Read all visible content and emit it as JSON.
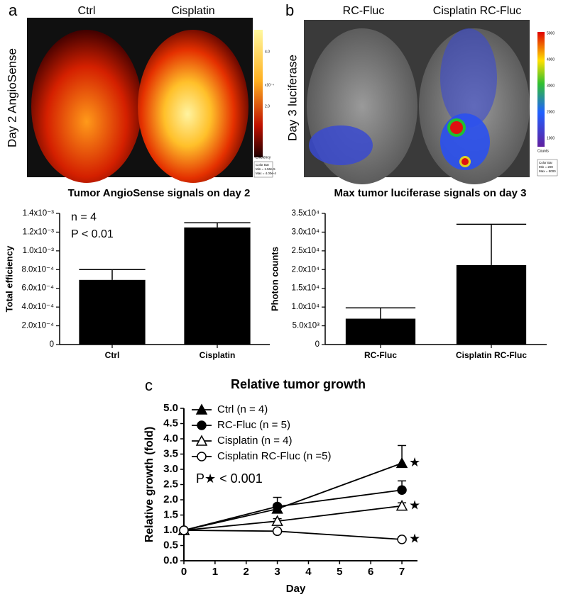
{
  "images": [
    {
      "panel_label": "a",
      "row_label": "Day 2 AngioSense",
      "columns": [
        "Ctrl",
        "Cisplatin"
      ],
      "colorbar": {
        "ticks": [
          "4.0",
          "2.0"
        ],
        "scale": "x10⁻⁴",
        "unit": "Efficiency",
        "box": [
          "Color Bar",
          "Min = 1.50e-5",
          "Max = 4.00e-4"
        ]
      }
    },
    {
      "panel_label": "b",
      "row_label": "Day 3 luciferase",
      "columns": [
        "RC-Fluc",
        "Cisplatin RC-Fluc"
      ],
      "colorbar": {
        "ticks": [
          "5000",
          "4000",
          "3000",
          "2000",
          "1000"
        ],
        "unit": "Counts",
        "box": [
          "Color Bar",
          "Min = 200",
          "Max = 5000"
        ]
      }
    }
  ],
  "chart_data": [
    {
      "type": "bar",
      "title": "Tumor AngioSense signals on day 2",
      "ylabel": "Total efficiency",
      "categories": [
        "Ctrl",
        "Cisplatin"
      ],
      "values": [
        0.00069,
        0.00125
      ],
      "errors": [
        0.00011,
        5e-05
      ],
      "color": "#000000",
      "ylim": [
        0,
        0.0014
      ],
      "yticks": [
        0,
        {
          "value": 0.0002,
          "label": "2.0x10⁻⁴"
        },
        {
          "value": 0.0004,
          "label": "4.0x10⁻⁴"
        },
        {
          "value": 0.0006,
          "label": "6.0x10⁻⁴"
        },
        {
          "value": 0.0008,
          "label": "8.0x10⁻⁴"
        },
        {
          "value": 0.001,
          "label": "1.0x10⁻³"
        },
        {
          "value": 0.0012,
          "label": "1.2x10⁻³"
        },
        {
          "value": 0.0014,
          "label": "1.4x10⁻³"
        }
      ],
      "annotations": [
        "n = 4",
        "P < 0.01"
      ]
    },
    {
      "type": "bar",
      "title": "Max tumor luciferase signals on day 3",
      "ylabel": "Photon counts",
      "categories": [
        "RC-Fluc",
        "Cisplatin RC-Fluc"
      ],
      "values": [
        6900,
        21200
      ],
      "errors": [
        2900,
        10900
      ],
      "color": "#000000",
      "ylim": [
        0,
        35000
      ],
      "yticks": [
        0,
        {
          "value": 5000,
          "label": "5.0x10³"
        },
        {
          "value": 10000,
          "label": "1.0x10⁴"
        },
        {
          "value": 15000,
          "label": "1.5x10⁴"
        },
        {
          "value": 20000,
          "label": "2.0x10⁴"
        },
        {
          "value": 25000,
          "label": "2.5x10⁴"
        },
        {
          "value": 30000,
          "label": "3.0x10⁴"
        },
        {
          "value": 35000,
          "label": "3.5x10⁴"
        }
      ]
    },
    {
      "type": "line",
      "panel_label": "c",
      "title": "Relative tumor growth",
      "xlabel": "Day",
      "ylabel": "Relative growth (fold)",
      "x": [
        0,
        3,
        7
      ],
      "xlim": [
        0,
        7.5
      ],
      "xticks": [
        0,
        1,
        2,
        3,
        4,
        5,
        6,
        7
      ],
      "ylim": [
        0,
        5
      ],
      "yticks": [
        {
          "value": 0,
          "label": "0.0"
        },
        0.5,
        {
          "value": 1,
          "label": "1.0"
        },
        1.5,
        {
          "value": 2,
          "label": "2.0"
        },
        2.5,
        {
          "value": 3,
          "label": "3.0"
        },
        3.5,
        {
          "value": 4,
          "label": "4.0"
        },
        4.5,
        {
          "value": 5,
          "label": "5.0"
        }
      ],
      "series": [
        {
          "name": "Ctrl (n = 4)",
          "color": "#000000",
          "marker": "triangle",
          "filled": true,
          "values": [
            1.0,
            1.7,
            3.2
          ],
          "errors": [
            0,
            0.15,
            0.58
          ],
          "star": "★"
        },
        {
          "name": "RC-Fluc (n = 5)",
          "color": "#000000",
          "marker": "circle",
          "filled": true,
          "values": [
            1.0,
            1.78,
            2.32
          ],
          "errors": [
            0,
            0.3,
            0.3
          ]
        },
        {
          "name": "Cisplatin (n = 4)",
          "color": "#000000",
          "marker": "triangle",
          "filled": false,
          "values": [
            1.0,
            1.3,
            1.8
          ],
          "errors": [
            0,
            0.08,
            0.1
          ],
          "star": "★"
        },
        {
          "name": "Cisplatin RC-Fluc (n =5)",
          "color": "#000000",
          "marker": "circle",
          "filled": false,
          "values": [
            1.0,
            0.97,
            0.7
          ],
          "errors": [
            0,
            0.04,
            0.05
          ],
          "star": "★"
        }
      ],
      "annotations": [
        "P★ < 0.001"
      ]
    }
  ]
}
